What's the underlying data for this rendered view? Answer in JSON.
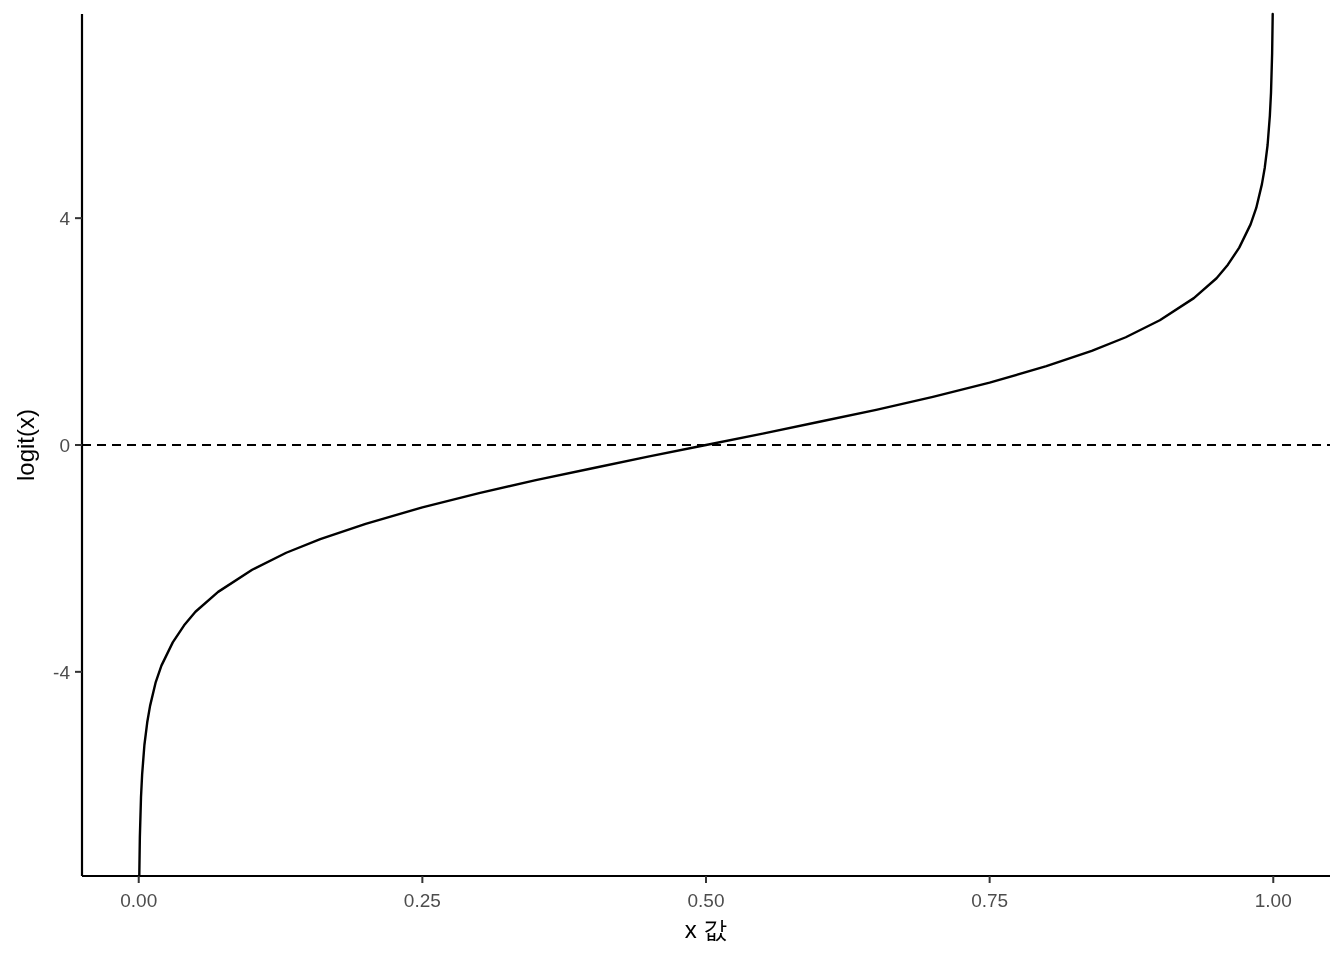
{
  "chart_data": {
    "type": "line",
    "xlabel": "x 값",
    "ylabel": "logit(x)",
    "color": "#000000",
    "x": [
      0.0005,
      0.001,
      0.002,
      0.003,
      0.005,
      0.0075,
      0.01,
      0.015,
      0.02,
      0.03,
      0.04,
      0.05,
      0.07,
      0.1,
      0.13,
      0.16,
      0.2,
      0.25,
      0.3,
      0.35,
      0.4,
      0.45,
      0.5,
      0.55,
      0.6,
      0.65,
      0.7,
      0.75,
      0.8,
      0.84,
      0.87,
      0.9,
      0.93,
      0.95,
      0.96,
      0.97,
      0.98,
      0.985,
      0.99,
      0.9925,
      0.995,
      0.997,
      0.998,
      0.999,
      0.9995
    ],
    "values": [
      -7.6,
      -6.91,
      -6.21,
      -5.81,
      -5.29,
      -4.89,
      -4.6,
      -4.18,
      -3.89,
      -3.48,
      -3.18,
      -2.94,
      -2.59,
      -2.2,
      -1.9,
      -1.66,
      -1.39,
      -1.1,
      -0.85,
      -0.62,
      -0.41,
      -0.2,
      0,
      0.2,
      0.41,
      0.62,
      0.85,
      1.1,
      1.39,
      1.66,
      1.9,
      2.2,
      2.59,
      2.94,
      3.18,
      3.48,
      3.89,
      4.18,
      4.6,
      4.89,
      5.29,
      5.81,
      6.21,
      6.91,
      7.6
    ],
    "xlim": [
      -0.05,
      1.05
    ],
    "ylim": [
      -7.6,
      7.6
    ],
    "xticks": [
      {
        "value": 0,
        "label": "0.00"
      },
      {
        "value": 0.25,
        "label": "0.25"
      },
      {
        "value": 0.5,
        "label": "0.50"
      },
      {
        "value": 0.75,
        "label": "0.75"
      },
      {
        "value": 1,
        "label": "1.00"
      }
    ],
    "yticks": [
      -4,
      0,
      4
    ],
    "ref_lines": [
      {
        "axis": "y",
        "value": 0,
        "line_style": "dashed",
        "color": "#000000"
      }
    ]
  }
}
